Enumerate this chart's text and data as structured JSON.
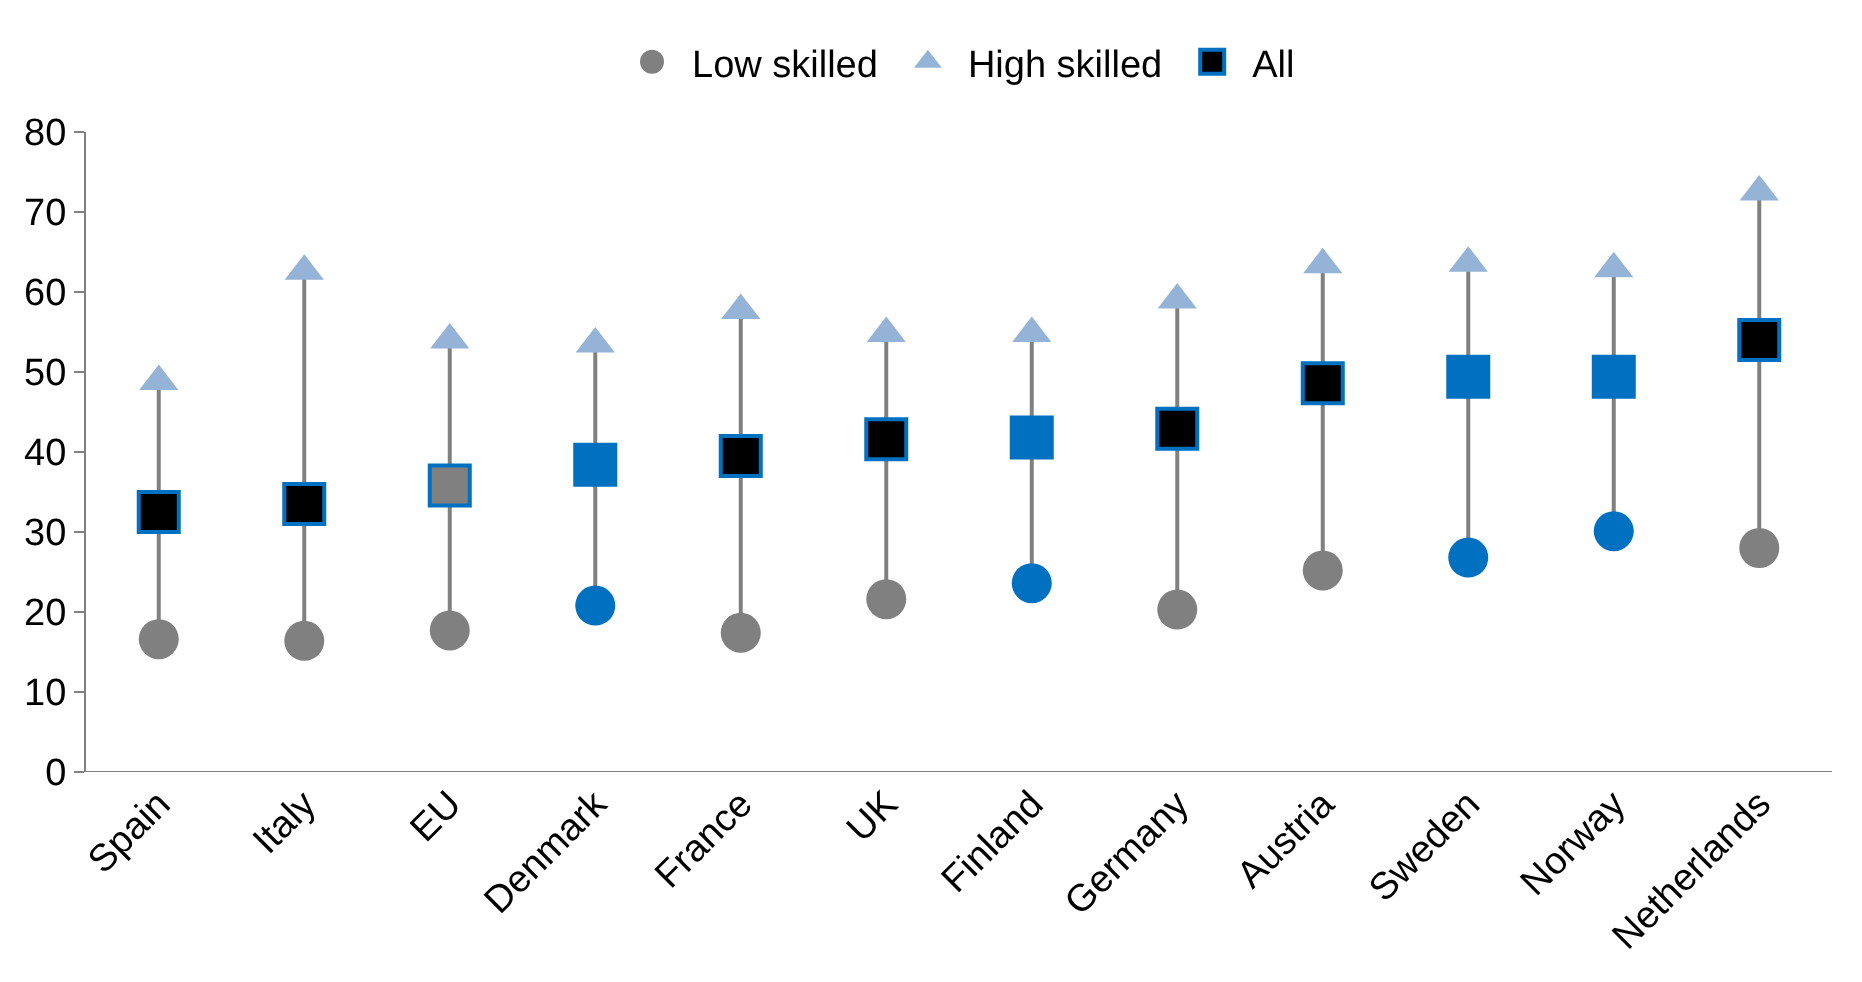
{
  "chart_data": {
    "type": "scatter",
    "categories": [
      "Spain",
      "Italy",
      "EU",
      "Denmark",
      "France",
      "UK",
      "Finland",
      "Germany",
      "Austria",
      "Sweden",
      "Norway",
      "Netherlands"
    ],
    "series": [
      {
        "name": "Low skilled",
        "marker": "circle",
        "colors": [
          "#808080",
          "#808080",
          "#808080",
          "#0070c0",
          "#808080",
          "#808080",
          "#0070c0",
          "#808080",
          "#808080",
          "#0070c0",
          "#0070c0",
          "#808080"
        ],
        "values": [
          16.6,
          16.4,
          17.7,
          20.8,
          17.4,
          21.6,
          23.6,
          20.3,
          25.2,
          26.8,
          30.1,
          28.0
        ]
      },
      {
        "name": "High skilled",
        "marker": "triangle",
        "color": "#95b3d7",
        "values": [
          48.8,
          62.6,
          54.0,
          53.5,
          57.7,
          54.8,
          54.8,
          59.0,
          63.4,
          63.6,
          62.9,
          72.5
        ]
      },
      {
        "name": "All",
        "marker": "square",
        "colors": [
          "#000000",
          "#000000",
          "#808080",
          "#0070c0",
          "#000000",
          "#000000",
          "#0070c0",
          "#000000",
          "#000000",
          "#0070c0",
          "#0070c0",
          "#000000"
        ],
        "values": [
          32.5,
          33.5,
          35.8,
          38.4,
          39.5,
          41.6,
          41.8,
          42.9,
          48.6,
          49.4,
          49.4,
          54.0
        ]
      }
    ],
    "ylim": [
      0,
      80
    ],
    "yticks": [
      0,
      10,
      20,
      30,
      40,
      50,
      60,
      70,
      80
    ],
    "grid": false,
    "legend": "top"
  }
}
